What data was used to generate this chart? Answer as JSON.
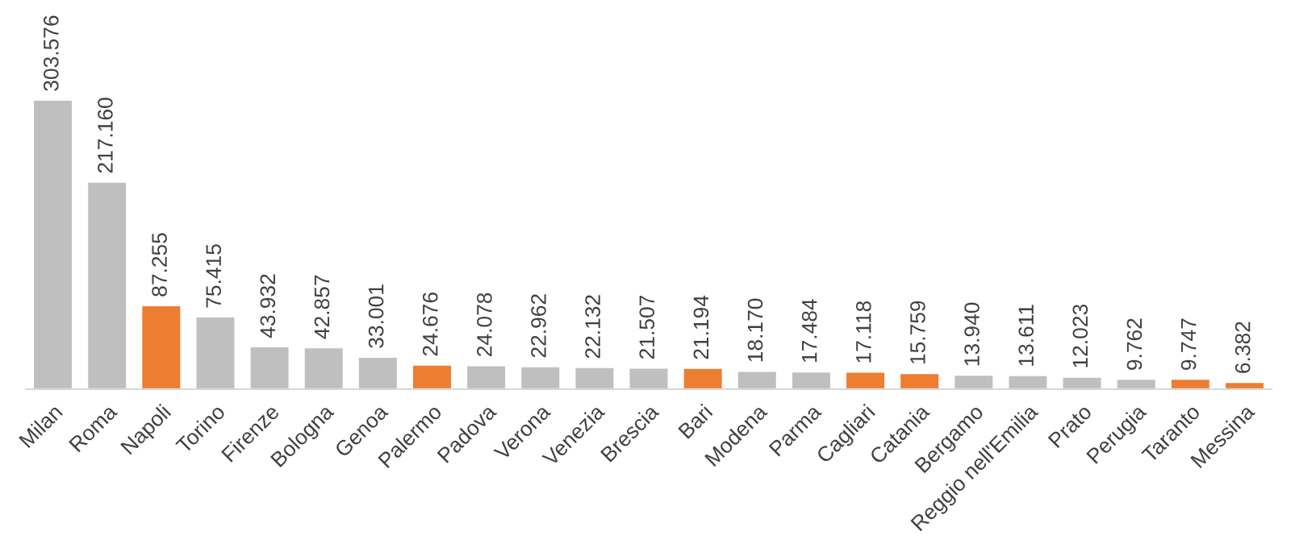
{
  "chart_data": {
    "type": "bar",
    "categories": [
      "Milan",
      "Roma",
      "Napoli",
      "Torino",
      "Firenze",
      "Bologna",
      "Genoa",
      "Palermo",
      "Padova",
      "Verona",
      "Venezia",
      "Brescia",
      "Bari",
      "Modena",
      "Parma",
      "Cagliari",
      "Catania",
      "Bergamo",
      "Reggio nell'Emilia",
      "Prato",
      "Perugia",
      "Taranto",
      "Messina"
    ],
    "values": [
      303.576,
      217.16,
      87.255,
      75.415,
      43.932,
      42.857,
      33.001,
      24.676,
      24.078,
      22.962,
      22.132,
      21.507,
      21.194,
      18.17,
      17.484,
      17.118,
      15.759,
      13.94,
      13.611,
      12.023,
      9.762,
      9.747,
      6.382
    ],
    "value_labels": [
      "303.576",
      "217.160",
      "87.255",
      "75.415",
      "43.932",
      "42.857",
      "33.001",
      "24.676",
      "24.078",
      "22.962",
      "22.132",
      "21.507",
      "21.194",
      "18.170",
      "17.484",
      "17.118",
      "15.759",
      "13.940",
      "13.611",
      "12.023",
      "9.762",
      "9.747",
      "6.382"
    ],
    "colors": [
      "#bfbfbf",
      "#bfbfbf",
      "#ed7d31",
      "#bfbfbf",
      "#bfbfbf",
      "#bfbfbf",
      "#bfbfbf",
      "#ed7d31",
      "#bfbfbf",
      "#bfbfbf",
      "#bfbfbf",
      "#bfbfbf",
      "#ed7d31",
      "#bfbfbf",
      "#bfbfbf",
      "#ed7d31",
      "#ed7d31",
      "#bfbfbf",
      "#bfbfbf",
      "#bfbfbf",
      "#bfbfbf",
      "#ed7d31",
      "#ed7d31"
    ],
    "grid": false,
    "legend": false
  }
}
